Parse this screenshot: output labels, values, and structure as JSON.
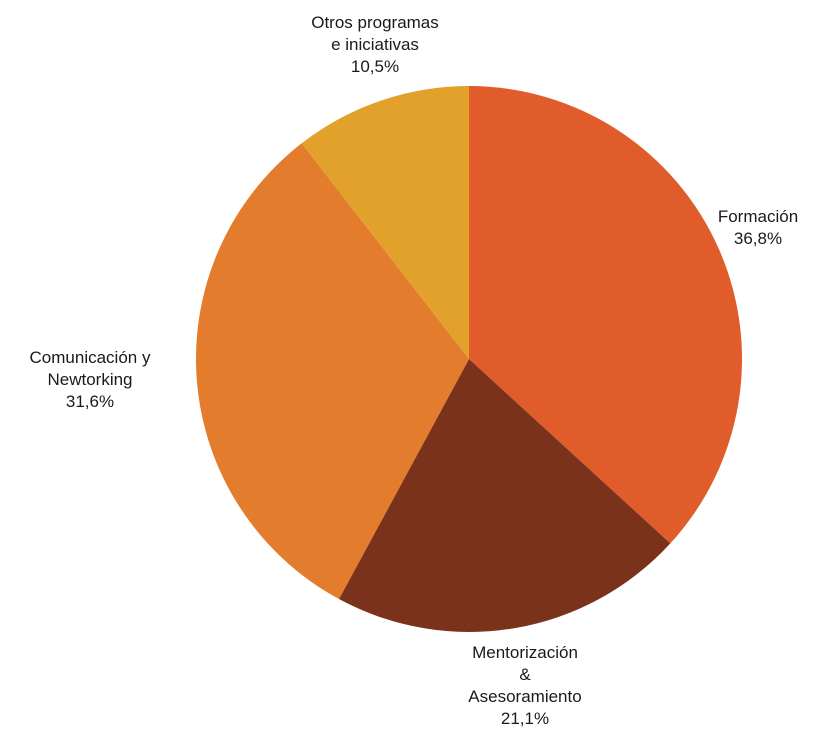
{
  "chart_data": {
    "type": "pie",
    "start_angle_deg": 0,
    "direction": "clockwise",
    "slices": [
      {
        "name": "Formación",
        "label_lines": [
          "Formación"
        ],
        "value": 36.8,
        "value_label": "36,8%",
        "color": "#e05c2b"
      },
      {
        "name": "Mentorización & Asesoramiento",
        "label_lines": [
          "Mentorización",
          "&",
          "Asesoramiento"
        ],
        "value": 21.1,
        "value_label": "21,1%",
        "color": "#7a321a"
      },
      {
        "name": "Comunicación y Newtorking",
        "label_lines": [
          "Comunicación y",
          "Newtorking"
        ],
        "value": 31.6,
        "value_label": "31,6%",
        "color": "#e37c2c"
      },
      {
        "name": "Otros programas e iniciativas",
        "label_lines": [
          "Otros programas",
          "e iniciativas"
        ],
        "value": 10.5,
        "value_label": "10,5%",
        "color": "#e2a12a"
      }
    ]
  }
}
